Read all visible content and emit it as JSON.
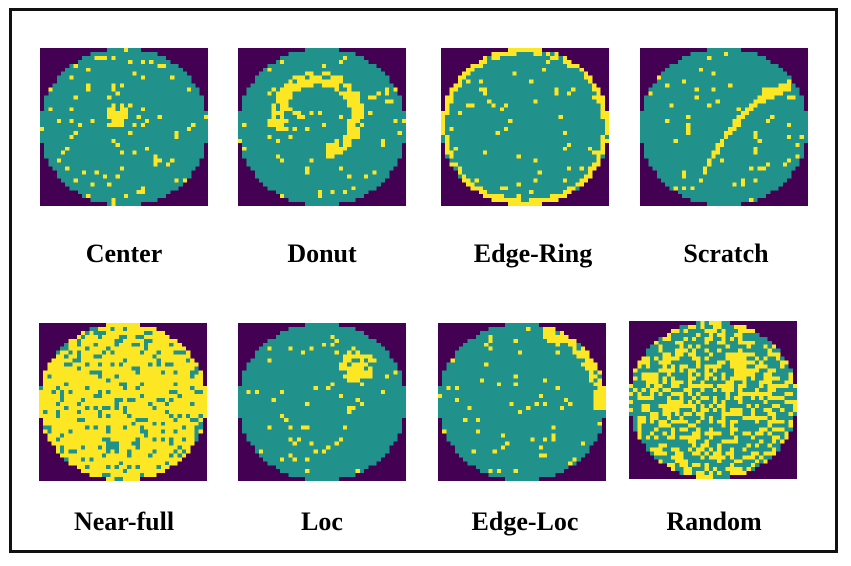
{
  "colors": {
    "background": "#440154",
    "wafer": "#21918c",
    "defect": "#fde725",
    "frame": "#111111"
  },
  "wafer_maps": [
    {
      "label": "Center",
      "pattern": "center"
    },
    {
      "label": "Donut",
      "pattern": "donut"
    },
    {
      "label": "Edge-Ring",
      "pattern": "edge-ring"
    },
    {
      "label": "Scratch",
      "pattern": "scratch"
    },
    {
      "label": "Near-full",
      "pattern": "near-full"
    },
    {
      "label": "Loc",
      "pattern": "loc"
    },
    {
      "label": "Edge-Loc",
      "pattern": "edge-loc"
    },
    {
      "label": "Random",
      "pattern": "random"
    }
  ]
}
